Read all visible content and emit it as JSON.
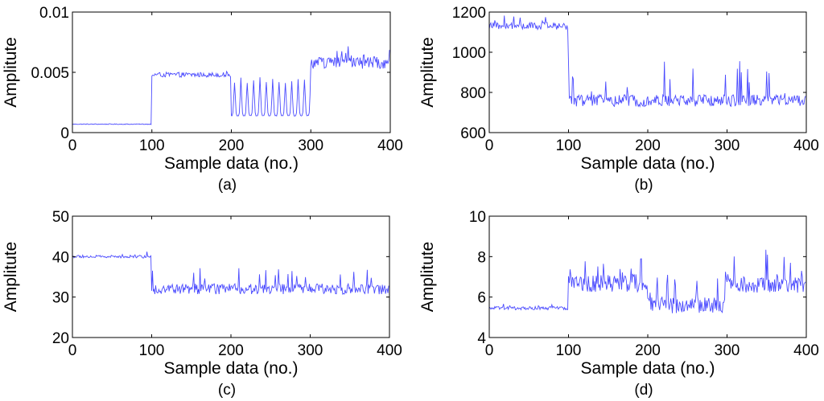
{
  "figure": {
    "background": "#ffffff",
    "line_color": "#4b4bff",
    "axis_color": "#000000"
  },
  "chart_data": [
    {
      "type": "line",
      "panel_label": "(a)",
      "xlabel": "Sample data (no.)",
      "ylabel": "Amplitute",
      "xlim": [
        0,
        400
      ],
      "ylim": [
        0,
        0.01
      ],
      "xticks": [
        0,
        100,
        200,
        300,
        400
      ],
      "xtick_labels": [
        "0",
        "100",
        "200",
        "300",
        "400"
      ],
      "yticks": [
        0,
        0.005,
        0.01
      ],
      "ytick_labels": [
        "0",
        "0.005",
        "0.01"
      ],
      "segments": [
        {
          "x_start": 0,
          "x_end": 99,
          "pattern": "steady",
          "level": 0.0007,
          "noise": 3e-05
        },
        {
          "x_start": 100,
          "x_end": 199,
          "pattern": "noise",
          "level": 0.0048,
          "noise": 0.0002,
          "spike_prob": 0.05,
          "spike_amp": 0.0003
        },
        {
          "x_start": 200,
          "x_end": 299,
          "pattern": "pulse",
          "level": 0.0014,
          "noise": 5e-05,
          "period": 8,
          "pulse_peak": 0.0046
        },
        {
          "x_start": 300,
          "x_end": 399,
          "pattern": "noise",
          "level": 0.0058,
          "noise": 0.0005,
          "spike_prob": 0.12,
          "spike_amp": 0.0012
        }
      ]
    },
    {
      "type": "line",
      "panel_label": "(b)",
      "xlabel": "Sample data (no.)",
      "ylabel": "Amplitute",
      "xlim": [
        0,
        400
      ],
      "ylim": [
        600,
        1200
      ],
      "xticks": [
        0,
        100,
        200,
        300,
        400
      ],
      "xtick_labels": [
        "0",
        "100",
        "200",
        "300",
        "400"
      ],
      "yticks": [
        600,
        800,
        1000,
        1200
      ],
      "ytick_labels": [
        "600",
        "800",
        "1000",
        "1200"
      ],
      "segments": [
        {
          "x_start": 0,
          "x_end": 99,
          "pattern": "noise",
          "level": 1130,
          "noise": 18,
          "spike_prob": 0.08,
          "spike_amp": 50
        },
        {
          "x_start": 100,
          "x_end": 399,
          "pattern": "noise",
          "level": 760,
          "noise": 30,
          "spike_prob": 0.09,
          "spike_amp": 180
        }
      ]
    },
    {
      "type": "line",
      "panel_label": "(c)",
      "xlabel": "Sample data (no.)",
      "ylabel": "Amplitute",
      "xlim": [
        0,
        400
      ],
      "ylim": [
        20,
        50
      ],
      "xticks": [
        0,
        100,
        200,
        300,
        400
      ],
      "xtick_labels": [
        "0",
        "100",
        "200",
        "300",
        "400"
      ],
      "yticks": [
        20,
        30,
        40,
        50
      ],
      "ytick_labels": [
        "20",
        "30",
        "40",
        "50"
      ],
      "segments": [
        {
          "x_start": 0,
          "x_end": 99,
          "pattern": "noise",
          "level": 40,
          "noise": 0.35,
          "spike_prob": 0.05,
          "spike_amp": 1
        },
        {
          "x_start": 100,
          "x_end": 399,
          "pattern": "noise",
          "level": 32,
          "noise": 1.3,
          "spike_prob": 0.07,
          "spike_amp": 5
        }
      ]
    },
    {
      "type": "line",
      "panel_label": "(d)",
      "xlabel": "Sample data (no.)",
      "ylabel": "Amplitute",
      "xlim": [
        0,
        400
      ],
      "ylim": [
        4,
        10
      ],
      "xticks": [
        0,
        100,
        200,
        300,
        400
      ],
      "xtick_labels": [
        "0",
        "100",
        "200",
        "300",
        "400"
      ],
      "yticks": [
        4,
        6,
        8,
        10
      ],
      "ytick_labels": [
        "4",
        "6",
        "8",
        "10"
      ],
      "segments": [
        {
          "x_start": 0,
          "x_end": 99,
          "pattern": "noise",
          "level": 5.45,
          "noise": 0.08,
          "spike_prob": 0.04,
          "spike_amp": 0.2
        },
        {
          "x_start": 100,
          "x_end": 199,
          "pattern": "noise",
          "level": 6.7,
          "noise": 0.45,
          "spike_prob": 0.12,
          "spike_amp": 1.2
        },
        {
          "x_start": 200,
          "x_end": 299,
          "pattern": "noise",
          "level": 5.6,
          "noise": 0.4,
          "spike_prob": 0.14,
          "spike_amp": 1.6
        },
        {
          "x_start": 300,
          "x_end": 399,
          "pattern": "noise",
          "level": 6.6,
          "noise": 0.4,
          "spike_prob": 0.12,
          "spike_amp": 1.8
        }
      ]
    }
  ]
}
